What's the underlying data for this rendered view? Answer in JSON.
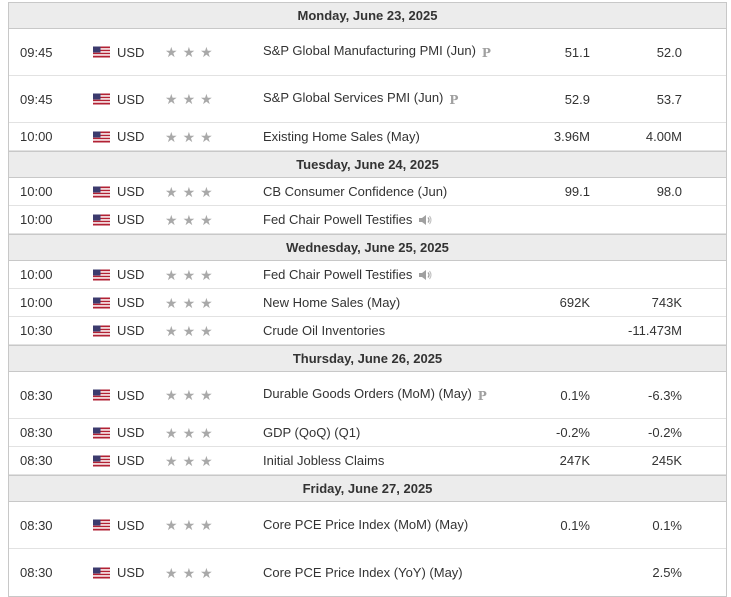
{
  "days": [
    {
      "date": "Monday, June 23, 2025",
      "events": [
        {
          "time": "09:45",
          "currency": "USD",
          "event": "S&P Global Manufacturing PMI (Jun)",
          "prelim": true,
          "speech": false,
          "actual": "51.1",
          "forecast": "52.0",
          "importance": 3
        },
        {
          "time": "09:45",
          "currency": "USD",
          "event": "S&P Global Services PMI (Jun)",
          "prelim": true,
          "speech": false,
          "actual": "52.9",
          "forecast": "53.7",
          "importance": 3
        },
        {
          "time": "10:00",
          "currency": "USD",
          "event": "Existing Home Sales (May)",
          "prelim": false,
          "speech": false,
          "actual": "3.96M",
          "forecast": "4.00M",
          "importance": 3
        }
      ]
    },
    {
      "date": "Tuesday, June 24, 2025",
      "events": [
        {
          "time": "10:00",
          "currency": "USD",
          "event": "CB Consumer Confidence (Jun)",
          "prelim": false,
          "speech": false,
          "actual": "99.1",
          "forecast": "98.0",
          "importance": 3
        },
        {
          "time": "10:00",
          "currency": "USD",
          "event": "Fed Chair Powell Testifies",
          "prelim": false,
          "speech": true,
          "actual": "",
          "forecast": "",
          "importance": 3
        }
      ]
    },
    {
      "date": "Wednesday, June 25, 2025",
      "events": [
        {
          "time": "10:00",
          "currency": "USD",
          "event": "Fed Chair Powell Testifies",
          "prelim": false,
          "speech": true,
          "actual": "",
          "forecast": "",
          "importance": 3
        },
        {
          "time": "10:00",
          "currency": "USD",
          "event": "New Home Sales (May)",
          "prelim": false,
          "speech": false,
          "actual": "692K",
          "forecast": "743K",
          "importance": 3
        },
        {
          "time": "10:30",
          "currency": "USD",
          "event": "Crude Oil Inventories",
          "prelim": false,
          "speech": false,
          "actual": "",
          "forecast": "-11.473M",
          "importance": 3
        }
      ]
    },
    {
      "date": "Thursday, June 26, 2025",
      "events": [
        {
          "time": "08:30",
          "currency": "USD",
          "event": "Durable Goods Orders (MoM) (May)",
          "prelim": true,
          "speech": false,
          "actual": "0.1%",
          "forecast": "-6.3%",
          "importance": 3
        },
        {
          "time": "08:30",
          "currency": "USD",
          "event": "GDP (QoQ) (Q1)",
          "prelim": false,
          "speech": false,
          "actual": "-0.2%",
          "forecast": "-0.2%",
          "importance": 3
        },
        {
          "time": "08:30",
          "currency": "USD",
          "event": "Initial Jobless Claims",
          "prelim": false,
          "speech": false,
          "actual": "247K",
          "forecast": "245K",
          "importance": 3
        }
      ]
    },
    {
      "date": "Friday, June 27, 2025",
      "events": [
        {
          "time": "08:30",
          "currency": "USD",
          "event": "Core PCE Price Index (MoM) (May)",
          "prelim": false,
          "speech": false,
          "actual": "0.1%",
          "forecast": "0.1%",
          "importance": 3
        },
        {
          "time": "08:30",
          "currency": "USD",
          "event": "Core PCE Price Index (YoY) (May)",
          "prelim": false,
          "speech": false,
          "actual": "",
          "forecast": "2.5%",
          "importance": 3
        }
      ]
    }
  ],
  "icons": {
    "flag": "us-flag-icon",
    "star": "star-icon",
    "prelim": "preliminary-p-icon",
    "speech": "speaker-icon"
  },
  "colors": {
    "header_bg": "#ececec",
    "border": "#c8c8c8",
    "star": "#a9a9a9",
    "text": "#333333"
  }
}
